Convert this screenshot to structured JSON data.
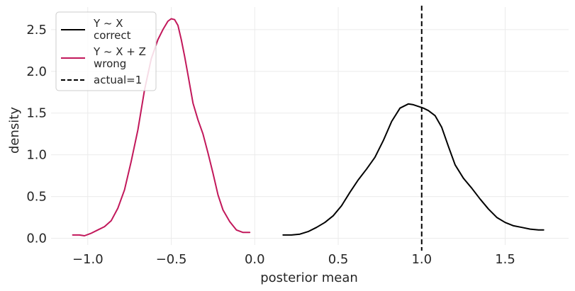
{
  "chart_data": {
    "type": "line",
    "xlabel": "posterior mean",
    "ylabel": "density",
    "xlim": [
      -1.22,
      1.88
    ],
    "ylim": [
      -0.08,
      2.77
    ],
    "xticks": [
      {
        "value": -1.0,
        "label": "−1.0"
      },
      {
        "value": -0.5,
        "label": "−0.5"
      },
      {
        "value": 0.0,
        "label": "0.0"
      },
      {
        "value": 0.5,
        "label": "0.5"
      },
      {
        "value": 1.0,
        "label": "1.0"
      },
      {
        "value": 1.5,
        "label": "1.5"
      }
    ],
    "yticks": [
      {
        "value": 0.0,
        "label": "0.0"
      },
      {
        "value": 0.5,
        "label": "0.5"
      },
      {
        "value": 1.0,
        "label": "1.0"
      },
      {
        "value": 1.5,
        "label": "1.5"
      },
      {
        "value": 2.0,
        "label": "2.0"
      },
      {
        "value": 2.5,
        "label": "2.5"
      }
    ],
    "grid": true,
    "legend_position": "top-left",
    "series": [
      {
        "name": "Y ~ X\ncorrect",
        "color": "#000000",
        "style": "solid",
        "x": [
          0.17,
          0.22,
          0.27,
          0.32,
          0.37,
          0.42,
          0.47,
          0.52,
          0.57,
          0.62,
          0.67,
          0.72,
          0.77,
          0.82,
          0.87,
          0.92,
          0.95,
          0.98,
          1.01,
          1.04,
          1.08,
          1.12,
          1.16,
          1.2,
          1.25,
          1.3,
          1.35,
          1.4,
          1.45,
          1.5,
          1.55,
          1.6,
          1.65,
          1.7,
          1.73
        ],
        "y": [
          0.04,
          0.04,
          0.05,
          0.08,
          0.13,
          0.19,
          0.27,
          0.39,
          0.55,
          0.7,
          0.83,
          0.97,
          1.17,
          1.4,
          1.56,
          1.61,
          1.6,
          1.58,
          1.56,
          1.53,
          1.47,
          1.33,
          1.1,
          0.88,
          0.72,
          0.6,
          0.47,
          0.35,
          0.25,
          0.19,
          0.15,
          0.13,
          0.11,
          0.1,
          0.1
        ]
      },
      {
        "name": "Y ~ X + Z\nwrong",
        "color": "#c2185b",
        "style": "solid",
        "x": [
          -1.09,
          -1.05,
          -1.02,
          -0.98,
          -0.94,
          -0.9,
          -0.86,
          -0.82,
          -0.78,
          -0.74,
          -0.7,
          -0.66,
          -0.62,
          -0.58,
          -0.55,
          -0.52,
          -0.5,
          -0.48,
          -0.46,
          -0.44,
          -0.42,
          -0.4,
          -0.37,
          -0.34,
          -0.31,
          -0.28,
          -0.25,
          -0.22,
          -0.19,
          -0.15,
          -0.11,
          -0.07,
          -0.03
        ],
        "y": [
          0.04,
          0.04,
          0.03,
          0.06,
          0.1,
          0.14,
          0.21,
          0.36,
          0.58,
          0.92,
          1.3,
          1.78,
          2.15,
          2.38,
          2.5,
          2.6,
          2.63,
          2.62,
          2.55,
          2.38,
          2.18,
          1.96,
          1.62,
          1.42,
          1.25,
          1.02,
          0.78,
          0.52,
          0.34,
          0.2,
          0.1,
          0.07,
          0.07
        ]
      },
      {
        "name": "actual=1",
        "color": "#000000",
        "style": "dashed",
        "vline_x": 1.0
      }
    ]
  }
}
